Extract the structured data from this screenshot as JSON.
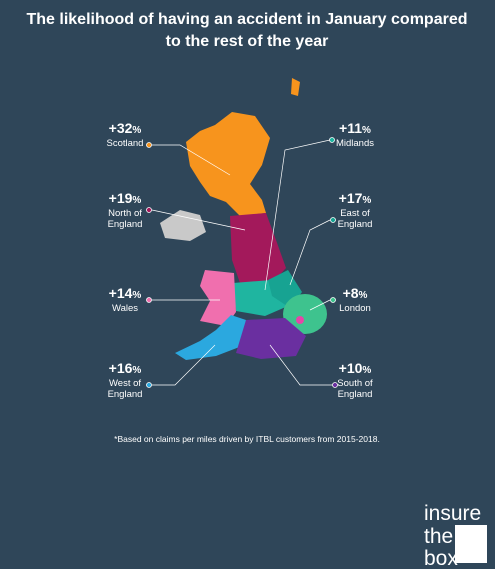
{
  "title": "The likelihood of having an accident in January compared to the rest of the year",
  "regions": [
    {
      "name": "Scotland",
      "value": "+32",
      "unit": "%"
    },
    {
      "name": "Midlands",
      "value": "+11",
      "unit": "%"
    },
    {
      "name": "North of\nEngland",
      "value": "+19",
      "unit": "%"
    },
    {
      "name": "East of\nEngland",
      "value": "+17",
      "unit": "%"
    },
    {
      "name": "Wales",
      "value": "+14",
      "unit": "%"
    },
    {
      "name": "London",
      "value": "+8",
      "unit": "%"
    },
    {
      "name": "West of\nEngland",
      "value": "+16",
      "unit": "%"
    },
    {
      "name": "South of\nEngland",
      "value": "+10",
      "unit": "%"
    }
  ],
  "footnote": "*Based on claims per miles driven by ITBL customers from 2015-2018.",
  "logo": [
    "insure",
    "the",
    "box"
  ]
}
